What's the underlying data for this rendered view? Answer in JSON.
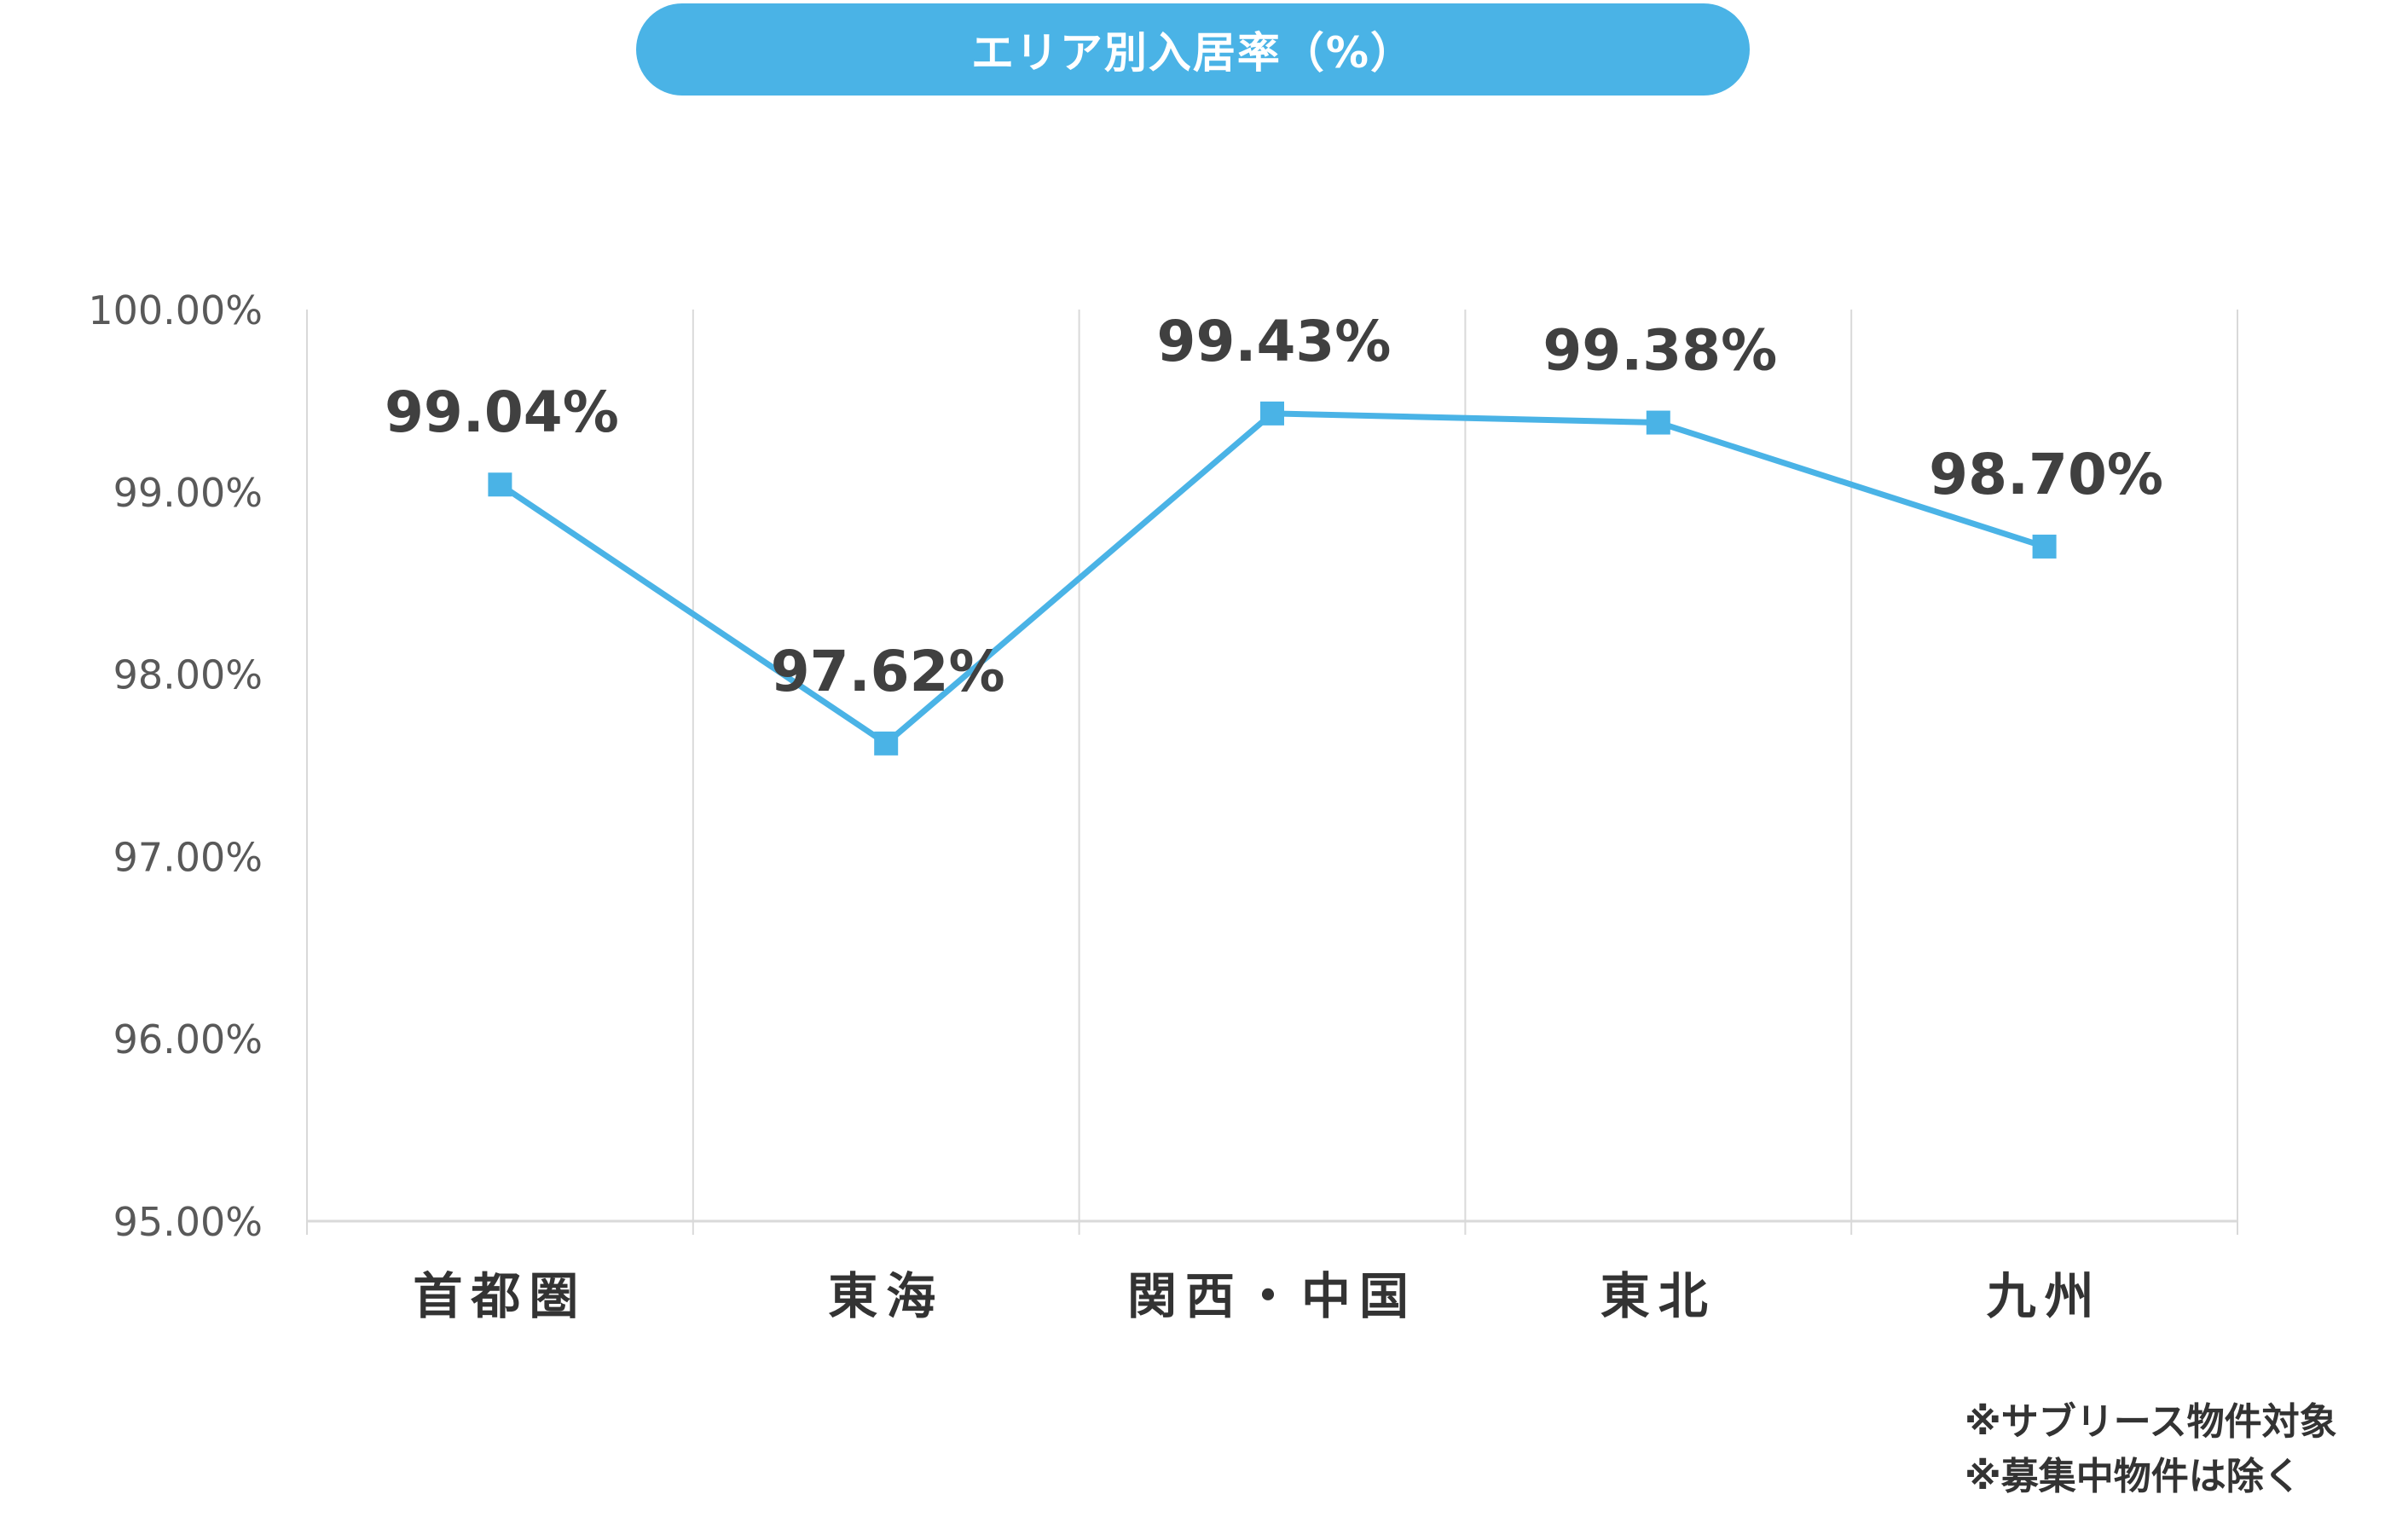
{
  "chart_data": {
    "type": "line",
    "title": "エリア別入居率（%）",
    "categories": [
      "首都圏",
      "東海",
      "関西・中国",
      "東北",
      "九州"
    ],
    "series": [
      {
        "values": [
          99.04,
          97.62,
          99.43,
          99.38,
          98.7
        ],
        "data_labels": [
          "99.04%",
          "97.62%",
          "99.43%",
          "99.38%",
          "98.70%"
        ]
      }
    ],
    "ylim": [
      95.0,
      100.0
    ],
    "y_ticks": [
      "95.00%",
      "96.00%",
      "97.00%",
      "98.00%",
      "99.00%",
      "100.00%"
    ],
    "grid": "vertical",
    "legend": "none",
    "colors": {
      "line": "#4ab3e6",
      "title_bg": "#4ab3e6",
      "grid": "#d9d9d9",
      "tick_text": "#595959",
      "label_text": "#404040"
    }
  },
  "notes": [
    "※サブリース物件対象",
    "※募集中物件は除く"
  ]
}
